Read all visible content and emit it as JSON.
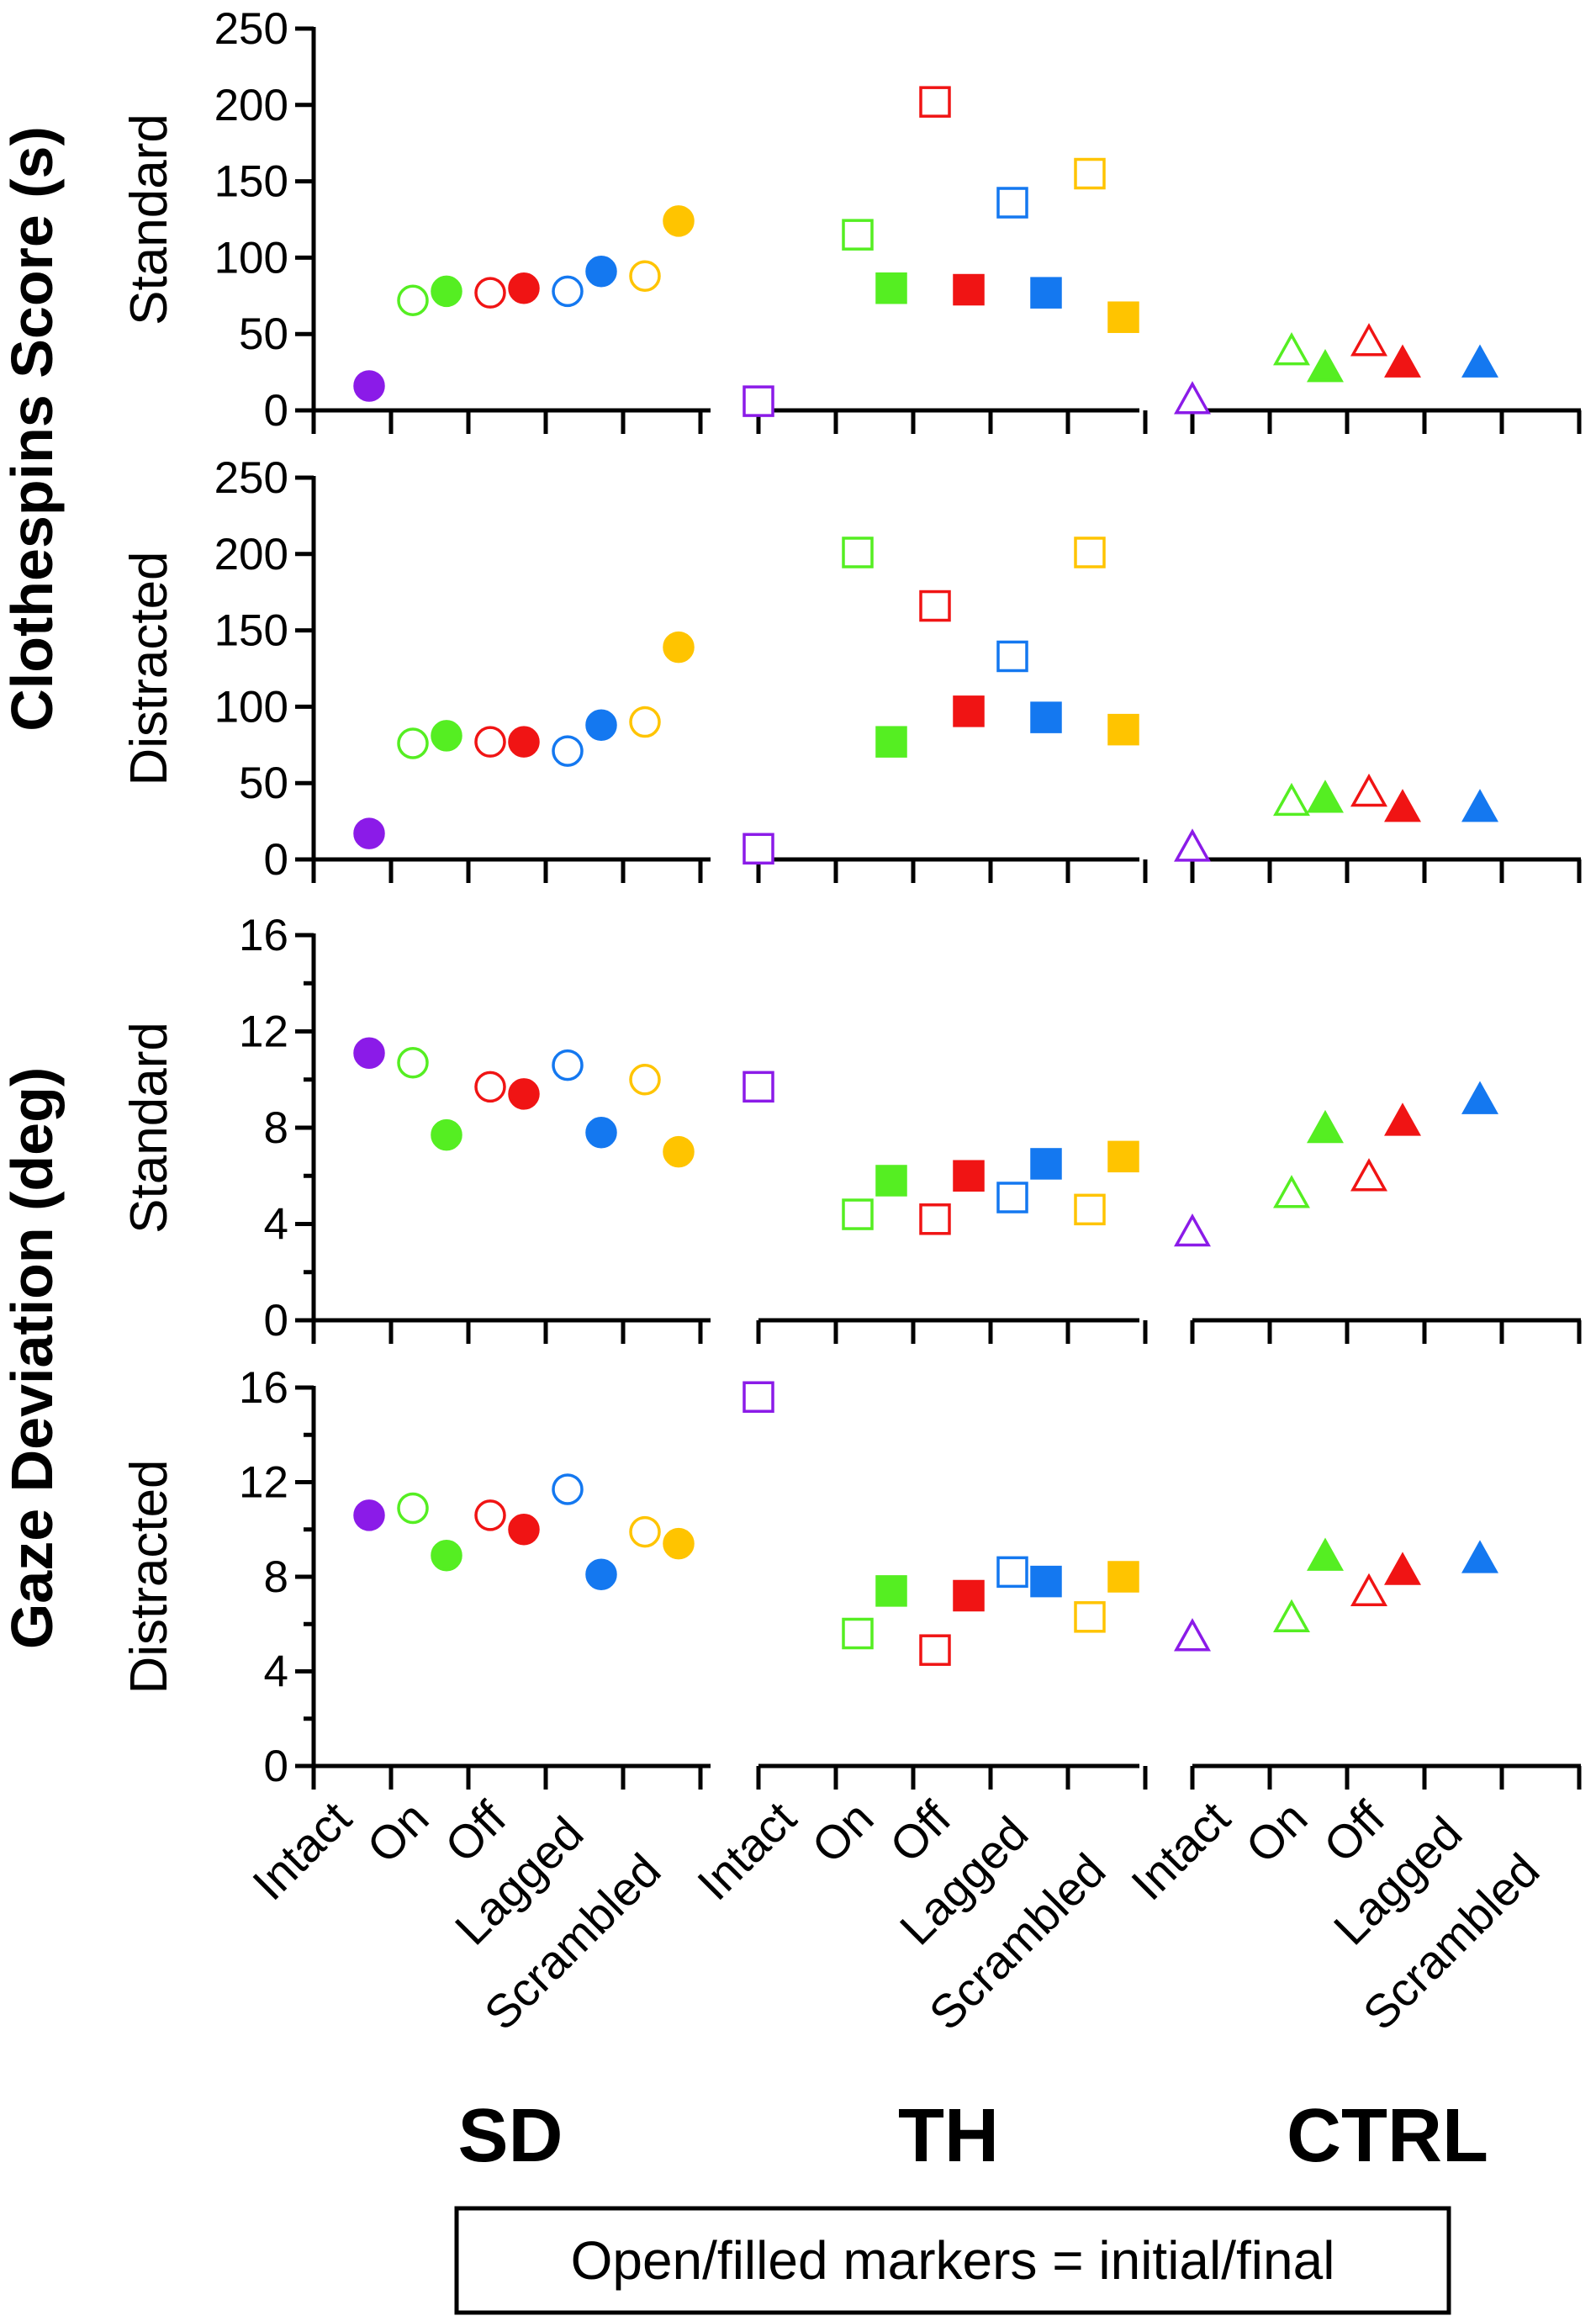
{
  "chart_data": {
    "type": "scatter",
    "groups": [
      "SD",
      "TH",
      "CTRL"
    ],
    "group_markers": {
      "SD": "circle",
      "TH": "square",
      "CTRL": "triangle"
    },
    "categories": [
      "Intact",
      "On",
      "Off",
      "Lagged",
      "Scrambled"
    ],
    "category_colors": {
      "Intact": "#8B1BE8",
      "On": "#55EE22",
      "Off": "#F01414",
      "Lagged": "#1478F0",
      "Scrambled": "#FFC400"
    },
    "y_labels": {
      "clothespins": "Clothespins Score (s)",
      "gaze": "Gaze Deviation (deg)"
    },
    "legend": "Open/filled markers = initial/final",
    "panels": [
      {
        "id": "clothespins-standard",
        "ylabel": "Standard",
        "ylim": [
          0,
          250
        ],
        "major_ticks": [
          0,
          50,
          100,
          150,
          200,
          250
        ],
        "minor_ticks": [],
        "tick_labels": [
          "0",
          "50",
          "100",
          "150",
          "200",
          "250"
        ],
        "points": [
          {
            "group": "SD",
            "category": "Intact",
            "stage": "final",
            "value": 16
          },
          {
            "group": "SD",
            "category": "On",
            "stage": "initial",
            "value": 72
          },
          {
            "group": "SD",
            "category": "On",
            "stage": "final",
            "value": 78
          },
          {
            "group": "SD",
            "category": "Off",
            "stage": "initial",
            "value": 77
          },
          {
            "group": "SD",
            "category": "Off",
            "stage": "final",
            "value": 80
          },
          {
            "group": "SD",
            "category": "Lagged",
            "stage": "initial",
            "value": 78
          },
          {
            "group": "SD",
            "category": "Lagged",
            "stage": "final",
            "value": 91
          },
          {
            "group": "SD",
            "category": "Scrambled",
            "stage": "initial",
            "value": 88
          },
          {
            "group": "SD",
            "category": "Scrambled",
            "stage": "final",
            "value": 124
          },
          {
            "group": "TH",
            "category": "Intact",
            "stage": "initial",
            "value": 6
          },
          {
            "group": "TH",
            "category": "On",
            "stage": "initial",
            "value": 115
          },
          {
            "group": "TH",
            "category": "On",
            "stage": "final",
            "value": 80
          },
          {
            "group": "TH",
            "category": "Off",
            "stage": "initial",
            "value": 202
          },
          {
            "group": "TH",
            "category": "Off",
            "stage": "final",
            "value": 79
          },
          {
            "group": "TH",
            "category": "Lagged",
            "stage": "initial",
            "value": 136
          },
          {
            "group": "TH",
            "category": "Lagged",
            "stage": "final",
            "value": 77
          },
          {
            "group": "TH",
            "category": "Scrambled",
            "stage": "initial",
            "value": 155
          },
          {
            "group": "TH",
            "category": "Scrambled",
            "stage": "final",
            "value": 61
          },
          {
            "group": "CTRL",
            "category": "Intact",
            "stage": "initial",
            "value": 6
          },
          {
            "group": "CTRL",
            "category": "On",
            "stage": "initial",
            "value": 38
          },
          {
            "group": "CTRL",
            "category": "On",
            "stage": "final",
            "value": 27
          },
          {
            "group": "CTRL",
            "category": "Off",
            "stage": "initial",
            "value": 44
          },
          {
            "group": "CTRL",
            "category": "Off",
            "stage": "final",
            "value": 30
          },
          {
            "group": "CTRL",
            "category": "Lagged",
            "stage": "final",
            "value": 30
          }
        ]
      },
      {
        "id": "clothespins-distracted",
        "ylabel": "Distracted",
        "ylim": [
          0,
          250
        ],
        "major_ticks": [
          0,
          50,
          100,
          150,
          200,
          250
        ],
        "minor_ticks": [],
        "tick_labels": [
          "0",
          "50",
          "100",
          "150",
          "200",
          "250"
        ],
        "points": [
          {
            "group": "SD",
            "category": "Intact",
            "stage": "final",
            "value": 17
          },
          {
            "group": "SD",
            "category": "On",
            "stage": "initial",
            "value": 76
          },
          {
            "group": "SD",
            "category": "On",
            "stage": "final",
            "value": 81
          },
          {
            "group": "SD",
            "category": "Off",
            "stage": "initial",
            "value": 77
          },
          {
            "group": "SD",
            "category": "Off",
            "stage": "final",
            "value": 77
          },
          {
            "group": "SD",
            "category": "Lagged",
            "stage": "initial",
            "value": 71
          },
          {
            "group": "SD",
            "category": "Lagged",
            "stage": "final",
            "value": 88
          },
          {
            "group": "SD",
            "category": "Scrambled",
            "stage": "initial",
            "value": 90
          },
          {
            "group": "SD",
            "category": "Scrambled",
            "stage": "final",
            "value": 139
          },
          {
            "group": "TH",
            "category": "Intact",
            "stage": "initial",
            "value": 7
          },
          {
            "group": "TH",
            "category": "On",
            "stage": "initial",
            "value": 201
          },
          {
            "group": "TH",
            "category": "On",
            "stage": "final",
            "value": 77
          },
          {
            "group": "TH",
            "category": "Off",
            "stage": "initial",
            "value": 166
          },
          {
            "group": "TH",
            "category": "Off",
            "stage": "final",
            "value": 97
          },
          {
            "group": "TH",
            "category": "Lagged",
            "stage": "initial",
            "value": 133
          },
          {
            "group": "TH",
            "category": "Lagged",
            "stage": "final",
            "value": 93
          },
          {
            "group": "TH",
            "category": "Scrambled",
            "stage": "initial",
            "value": 201
          },
          {
            "group": "TH",
            "category": "Scrambled",
            "stage": "final",
            "value": 85
          },
          {
            "group": "CTRL",
            "category": "Intact",
            "stage": "initial",
            "value": 7
          },
          {
            "group": "CTRL",
            "category": "On",
            "stage": "initial",
            "value": 37
          },
          {
            "group": "CTRL",
            "category": "On",
            "stage": "final",
            "value": 39
          },
          {
            "group": "CTRL",
            "category": "Off",
            "stage": "initial",
            "value": 43
          },
          {
            "group": "CTRL",
            "category": "Off",
            "stage": "final",
            "value": 33
          },
          {
            "group": "CTRL",
            "category": "Lagged",
            "stage": "final",
            "value": 33
          }
        ]
      },
      {
        "id": "gaze-standard",
        "ylabel": "Standard",
        "ylim": [
          0,
          16
        ],
        "major_ticks": [
          0,
          4,
          8,
          12,
          16
        ],
        "minor_ticks": [
          2,
          6,
          10,
          14
        ],
        "tick_labels": [
          "0",
          "4",
          "8",
          "12",
          "16"
        ],
        "points": [
          {
            "group": "SD",
            "category": "Intact",
            "stage": "final",
            "value": 11.1
          },
          {
            "group": "SD",
            "category": "On",
            "stage": "initial",
            "value": 10.7
          },
          {
            "group": "SD",
            "category": "On",
            "stage": "final",
            "value": 7.7
          },
          {
            "group": "SD",
            "category": "Off",
            "stage": "initial",
            "value": 9.7
          },
          {
            "group": "SD",
            "category": "Off",
            "stage": "final",
            "value": 9.4
          },
          {
            "group": "SD",
            "category": "Lagged",
            "stage": "initial",
            "value": 10.6
          },
          {
            "group": "SD",
            "category": "Lagged",
            "stage": "final",
            "value": 7.8
          },
          {
            "group": "SD",
            "category": "Scrambled",
            "stage": "initial",
            "value": 10.0
          },
          {
            "group": "SD",
            "category": "Scrambled",
            "stage": "final",
            "value": 7.0
          },
          {
            "group": "TH",
            "category": "Intact",
            "stage": "initial",
            "value": 9.7
          },
          {
            "group": "TH",
            "category": "On",
            "stage": "initial",
            "value": 4.4
          },
          {
            "group": "TH",
            "category": "On",
            "stage": "final",
            "value": 5.8
          },
          {
            "group": "TH",
            "category": "Off",
            "stage": "initial",
            "value": 4.2
          },
          {
            "group": "TH",
            "category": "Off",
            "stage": "final",
            "value": 6.0
          },
          {
            "group": "TH",
            "category": "Lagged",
            "stage": "initial",
            "value": 5.1
          },
          {
            "group": "TH",
            "category": "Lagged",
            "stage": "final",
            "value": 6.5
          },
          {
            "group": "TH",
            "category": "Scrambled",
            "stage": "initial",
            "value": 4.6
          },
          {
            "group": "TH",
            "category": "Scrambled",
            "stage": "final",
            "value": 6.8
          },
          {
            "group": "CTRL",
            "category": "Intact",
            "stage": "initial",
            "value": 3.6
          },
          {
            "group": "CTRL",
            "category": "On",
            "stage": "initial",
            "value": 5.2
          },
          {
            "group": "CTRL",
            "category": "On",
            "stage": "final",
            "value": 7.9
          },
          {
            "group": "CTRL",
            "category": "Off",
            "stage": "initial",
            "value": 5.9
          },
          {
            "group": "CTRL",
            "category": "Off",
            "stage": "final",
            "value": 8.2
          },
          {
            "group": "CTRL",
            "category": "Lagged",
            "stage": "final",
            "value": 9.1
          }
        ]
      },
      {
        "id": "gaze-distracted",
        "ylabel": "Distracted",
        "ylim": [
          0,
          16
        ],
        "major_ticks": [
          0,
          4,
          8,
          12,
          16
        ],
        "minor_ticks": [
          2,
          6,
          10,
          14
        ],
        "tick_labels": [
          "0",
          "4",
          "8",
          "12",
          "16"
        ],
        "points": [
          {
            "group": "SD",
            "category": "Intact",
            "stage": "final",
            "value": 10.6
          },
          {
            "group": "SD",
            "category": "On",
            "stage": "initial",
            "value": 10.9
          },
          {
            "group": "SD",
            "category": "On",
            "stage": "final",
            "value": 8.9
          },
          {
            "group": "SD",
            "category": "Off",
            "stage": "initial",
            "value": 10.6
          },
          {
            "group": "SD",
            "category": "Off",
            "stage": "final",
            "value": 10.0
          },
          {
            "group": "SD",
            "category": "Lagged",
            "stage": "initial",
            "value": 11.7
          },
          {
            "group": "SD",
            "category": "Lagged",
            "stage": "final",
            "value": 8.1
          },
          {
            "group": "SD",
            "category": "Scrambled",
            "stage": "initial",
            "value": 9.9
          },
          {
            "group": "SD",
            "category": "Scrambled",
            "stage": "final",
            "value": 9.4
          },
          {
            "group": "TH",
            "category": "Intact",
            "stage": "initial",
            "value": 15.6
          },
          {
            "group": "TH",
            "category": "On",
            "stage": "initial",
            "value": 5.6
          },
          {
            "group": "TH",
            "category": "On",
            "stage": "final",
            "value": 7.4
          },
          {
            "group": "TH",
            "category": "Off",
            "stage": "initial",
            "value": 4.9
          },
          {
            "group": "TH",
            "category": "Off",
            "stage": "final",
            "value": 7.2
          },
          {
            "group": "TH",
            "category": "Lagged",
            "stage": "initial",
            "value": 8.2
          },
          {
            "group": "TH",
            "category": "Lagged",
            "stage": "final",
            "value": 7.8
          },
          {
            "group": "TH",
            "category": "Scrambled",
            "stage": "initial",
            "value": 6.3
          },
          {
            "group": "TH",
            "category": "Scrambled",
            "stage": "final",
            "value": 8.0
          },
          {
            "group": "CTRL",
            "category": "Intact",
            "stage": "initial",
            "value": 5.4
          },
          {
            "group": "CTRL",
            "category": "On",
            "stage": "initial",
            "value": 6.2
          },
          {
            "group": "CTRL",
            "category": "On",
            "stage": "final",
            "value": 8.8
          },
          {
            "group": "CTRL",
            "category": "Off",
            "stage": "initial",
            "value": 7.3
          },
          {
            "group": "CTRL",
            "category": "Off",
            "stage": "final",
            "value": 8.2
          },
          {
            "group": "CTRL",
            "category": "Lagged",
            "stage": "final",
            "value": 8.7
          }
        ]
      }
    ]
  }
}
